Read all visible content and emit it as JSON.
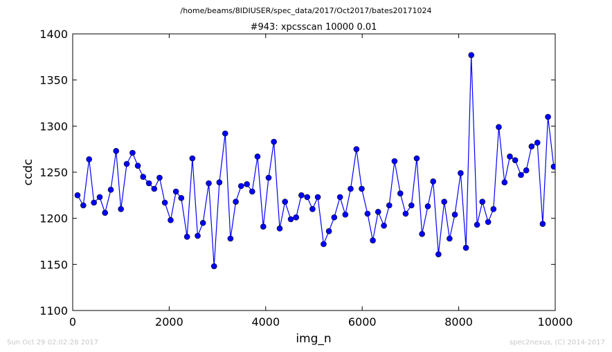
{
  "chart_data": {
    "type": "line",
    "subtitle": "/home/beams/8IDIUSER/spec_data/2017/Oct2017/bates20171024",
    "title": "#943: xpcsscan 10000 0.01",
    "xlabel": "img_n",
    "ylabel": "ccdc",
    "xlim": [
      0,
      10000
    ],
    "ylim": [
      1100,
      1400
    ],
    "xticks": [
      0,
      2000,
      4000,
      6000,
      8000,
      10000
    ],
    "yticks": [
      1100,
      1150,
      1200,
      1250,
      1300,
      1350,
      1400
    ],
    "grid": false,
    "series": [
      {
        "color": "#0000ff",
        "marker": "circle",
        "x": [
          100,
          220,
          340,
          440,
          560,
          670,
          790,
          900,
          1000,
          1120,
          1240,
          1350,
          1460,
          1580,
          1690,
          1800,
          1910,
          2030,
          2140,
          2250,
          2370,
          2480,
          2590,
          2700,
          2820,
          2930,
          3040,
          3160,
          3270,
          3380,
          3490,
          3610,
          3720,
          3830,
          3950,
          4060,
          4170,
          4290,
          4400,
          4520,
          4630,
          4740,
          4860,
          4970,
          5080,
          5200,
          5310,
          5420,
          5540,
          5650,
          5760,
          5880,
          5990,
          6110,
          6220,
          6330,
          6450,
          6560,
          6670,
          6790,
          6900,
          7020,
          7130,
          7240,
          7360,
          7470,
          7580,
          7700,
          7810,
          7920,
          8040,
          8150,
          8260,
          8380,
          8490,
          8610,
          8720,
          8830,
          8950,
          9060,
          9170,
          9290,
          9400,
          9510,
          9630,
          9740,
          9850,
          9970
        ],
        "y": [
          1225,
          1214,
          1264,
          1217,
          1223,
          1206,
          1231,
          1273,
          1210,
          1259,
          1271,
          1257,
          1245,
          1238,
          1232,
          1244,
          1217,
          1198,
          1229,
          1222,
          1180,
          1265,
          1181,
          1195,
          1238,
          1148,
          1239,
          1292,
          1178,
          1218,
          1235,
          1237,
          1229,
          1267,
          1191,
          1244,
          1283,
          1189,
          1218,
          1199,
          1201,
          1225,
          1223,
          1210,
          1223,
          1172,
          1186,
          1201,
          1223,
          1204,
          1232,
          1275,
          1232,
          1205,
          1176,
          1207,
          1192,
          1214,
          1262,
          1227,
          1205,
          1214,
          1265,
          1183,
          1213,
          1240,
          1161,
          1218,
          1178,
          1204,
          1249,
          1168,
          1377,
          1193,
          1218,
          1196,
          1210,
          1299,
          1239,
          1267,
          1263,
          1247,
          1252,
          1278,
          1282,
          1194,
          1310,
          1256
        ]
      }
    ]
  },
  "footer": {
    "timestamp": "Sun Oct 29 02:02:28 2017",
    "credit": "spec2nexus, (C) 2014-2017"
  }
}
